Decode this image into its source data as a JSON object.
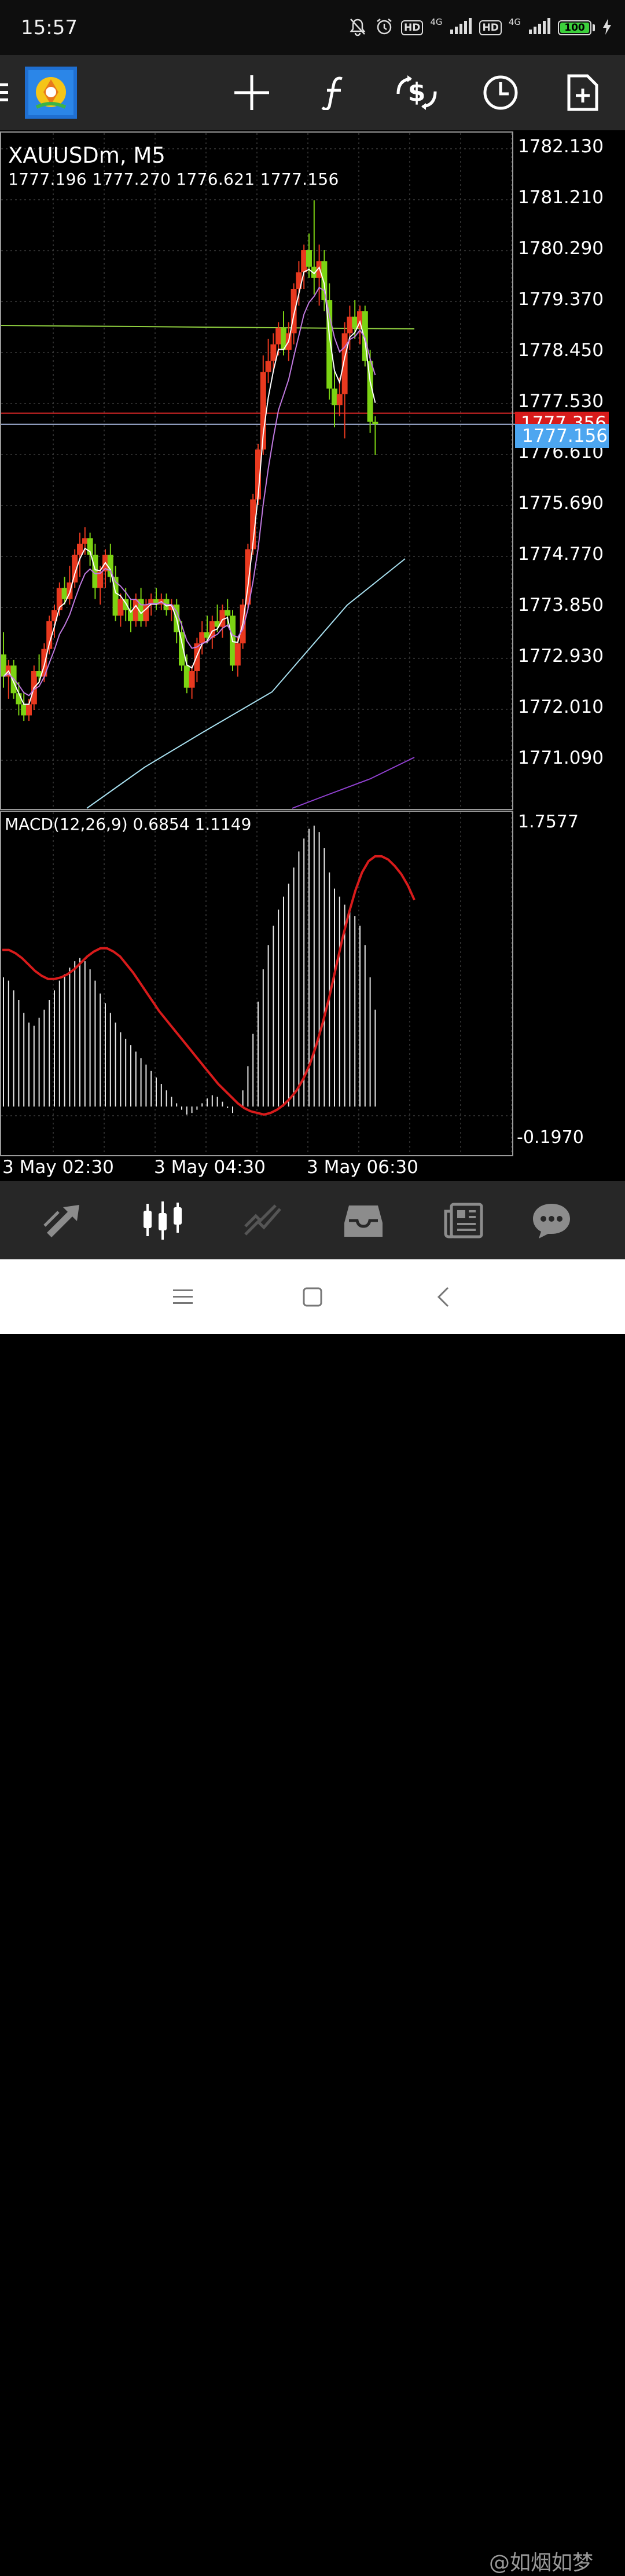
{
  "status_bar": {
    "time": "15:57",
    "hd1": "HD",
    "hd2": "HD",
    "net1": "4G",
    "net2": "4G",
    "battery": "100"
  },
  "toolbar": {
    "menu_icon": "hamburger-menu-icon",
    "logo_icon": "metatrader-app-logo",
    "buttons": [
      "crosshair-icon",
      "indicators-f-icon",
      "trade-dollar-icon",
      "clock-timeframe-icon",
      "new-order-doc-icon"
    ]
  },
  "chart": {
    "symbol_timeframe": "XAUUSDm, M5",
    "ohlc": "1777.196 1777.270 1776.621 1777.156",
    "price_labels": [
      "1782.130",
      "1781.210",
      "1780.290",
      "1779.370",
      "1778.450",
      "1777.530",
      "1776.610",
      "1775.690",
      "1774.770",
      "1773.850",
      "1772.930",
      "1772.010",
      "1771.090"
    ],
    "bid_label": "1777.356",
    "last_price_label": "1777.156",
    "macd_title": "MACD(12,26,9) 0.6854 1.1149",
    "macd_labels": [
      "1.7577",
      "-0.1970"
    ],
    "time_labels": [
      "3 May 02:30",
      "3 May 04:30",
      "3 May 06:30"
    ],
    "colors": {
      "bull": "#e8391f",
      "bear": "#7cd313",
      "ask_line": "#e02828",
      "last_line": "#a8b8e0",
      "resistance_line": "#90d040",
      "ma_fast": "#ffffff",
      "ma_mid": "#c07ae0",
      "ma_slow": "#a8e0f0",
      "ma_long": "#9040d0",
      "macd_signal": "#d81b1b"
    }
  },
  "bottom_nav": [
    "quotes-arrows-icon",
    "chart-candles-icon",
    "trade-chart-icon",
    "history-inbox-icon",
    "news-icon",
    "chat-bubble-icon"
  ],
  "system_nav": [
    "recents-menu-icon",
    "home-square-icon",
    "back-chevron-icon"
  ],
  "watermark": "@如烟如梦"
}
